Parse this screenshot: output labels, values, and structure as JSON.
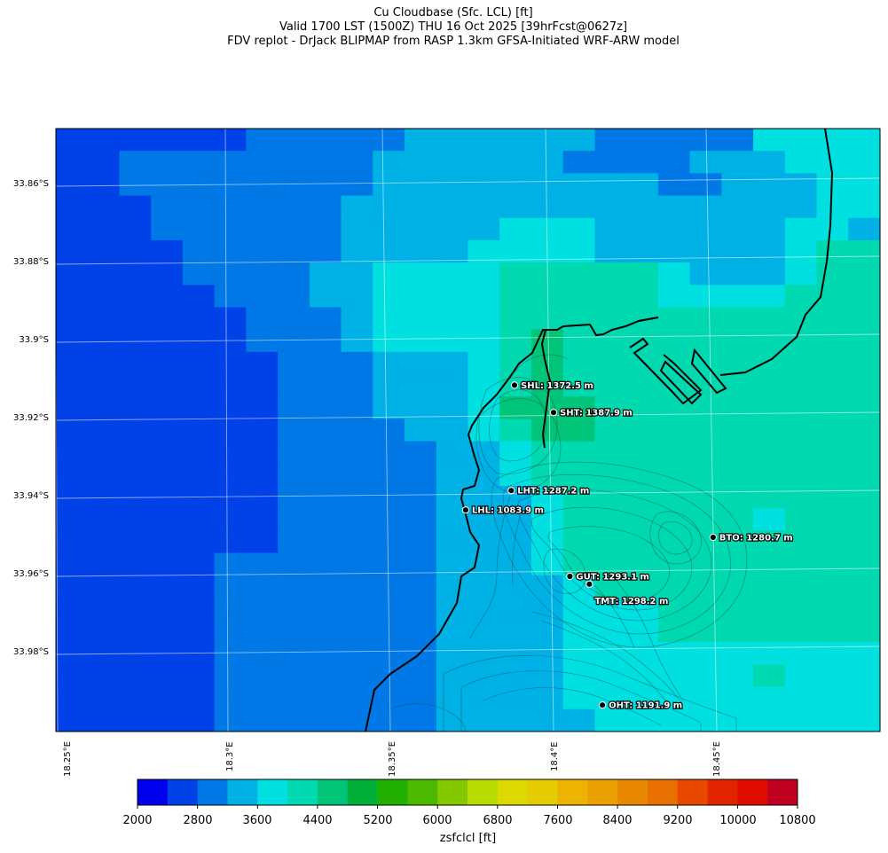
{
  "title": {
    "line1": "Cu Cloudbase (Sfc. LCL) [ft]",
    "line2": "Valid 1700 LST (1500Z) THU 16 Oct 2025 [39hrFcst@0627z]",
    "line3": "FDV replot - DrJack BLIPMAP from RASP 1.3km GFSA-Initiated WRF-ARW model"
  },
  "lat_labels": [
    "33.86°S",
    "33.88°S",
    "33.9°S",
    "33.92°S",
    "33.94°S",
    "33.96°S",
    "33.98°S"
  ],
  "lon_labels": [
    "18.25°E",
    "18.3°E",
    "18.35°E",
    "18.4°E",
    "18.45°E"
  ],
  "stations": [
    {
      "label": "SHL: 1372.5 m",
      "lon": 18.388,
      "lat": -33.911
    },
    {
      "label": "SHT: 1387.9 m",
      "lon": 18.4,
      "lat": -33.918
    },
    {
      "label": "LHT: 1287.2 m",
      "lon": 18.387,
      "lat": -33.938
    },
    {
      "label": "LHL: 1083.9 m",
      "lon": 18.373,
      "lat": -33.943
    },
    {
      "label": "BTO: 1280.7 m",
      "lon": 18.449,
      "lat": -33.95
    },
    {
      "label": "GUT: 1293.1 m",
      "lon": 18.405,
      "lat": -33.96
    },
    {
      "label": "TMT: 1298.2 m",
      "lon": 18.411,
      "lat": -33.962
    },
    {
      "label": "OHT: 1191.9 m",
      "lon": 18.415,
      "lat": -33.993
    }
  ],
  "colorbar": {
    "label": "zsfclcl [ft]",
    "tick_labels": [
      "2000",
      "2800",
      "3600",
      "4400",
      "5200",
      "6000",
      "6800",
      "7600",
      "8400",
      "9200",
      "10000",
      "10800"
    ],
    "colors": [
      "#0000f0",
      "#0041e8",
      "#0078e6",
      "#00b1e6",
      "#00e0e0",
      "#00d8b0",
      "#00c478",
      "#00b038",
      "#22b000",
      "#4cb800",
      "#84c800",
      "#b8dc00",
      "#dcd800",
      "#e4cc00",
      "#ecb400",
      "#eaa000",
      "#e88800",
      "#e87000",
      "#e84800",
      "#e02400",
      "#e00c00",
      "#c00020"
    ]
  },
  "colors": {
    "c2": "#0041e8",
    "c3": "#0078e6",
    "c4": "#00b1e6",
    "c5": "#00e0e0",
    "c6": "#00d8b0",
    "c7": "#00c478"
  },
  "grid": [
    "22222233333444444333335555",
    "22333333334444443333444555",
    "22333333334444444443344455",
    "22233333344444444444444455",
    "22233333344444555444444554",
    "22223333344445555444444566",
    "22223333445555666665444566",
    "22222333445555666665555666",
    "22222233345555666666666666",
    "22222233345555676666666666",
    "22222223334445676666666666",
    "22222223334445676666666666",
    "22222223334445777666666666",
    "22222223333445677666666666",
    "22222223333344566666666666",
    "22222223333344566666666666",
    "22222223333344456666666666",
    "22222223333344456666665666",
    "22222223333344456666666666",
    "22222333333344456666666666",
    "22222333333344445666666666",
    "22222333333344445556666666",
    "22222333333344445556666666",
    "22222333333344445555555555",
    "22222333333344445555556555",
    "22222333333344445555555555",
    "22222333333344444555555555"
  ]
}
